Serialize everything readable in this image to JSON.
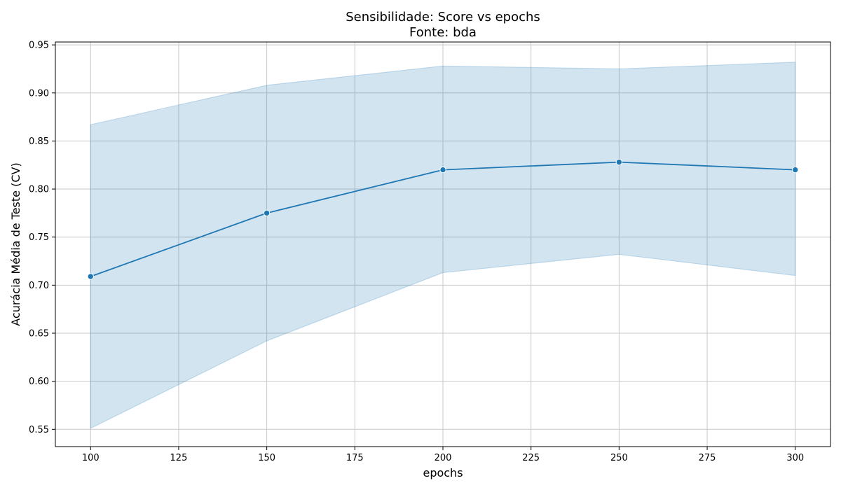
{
  "chart_data": {
    "type": "line",
    "title_line1": "Sensibilidade: Score vs epochs",
    "title_line2": "Fonte: bda",
    "xlabel": "epochs",
    "ylabel": "Acurácia Média de Teste (CV)",
    "x": [
      100,
      150,
      200,
      250,
      300
    ],
    "series": [
      {
        "values": [
          0.709,
          0.775,
          0.82,
          0.828,
          0.82
        ],
        "upper": [
          0.867,
          0.908,
          0.928,
          0.925,
          0.932
        ],
        "lower": [
          0.551,
          0.642,
          0.713,
          0.732,
          0.71
        ]
      }
    ],
    "xlim": [
      90,
      310
    ],
    "ylim": [
      0.532,
      0.953
    ],
    "xticks": [
      "100",
      "125",
      "150",
      "175",
      "200",
      "225",
      "250",
      "275",
      "300"
    ],
    "yticks": [
      "0.55",
      "0.60",
      "0.65",
      "0.70",
      "0.75",
      "0.80",
      "0.85",
      "0.90",
      "0.95"
    ],
    "grid": true,
    "colors": {
      "line": "#1f77b4",
      "band": "#1f77b4",
      "grid": "#c8c8c8"
    }
  }
}
